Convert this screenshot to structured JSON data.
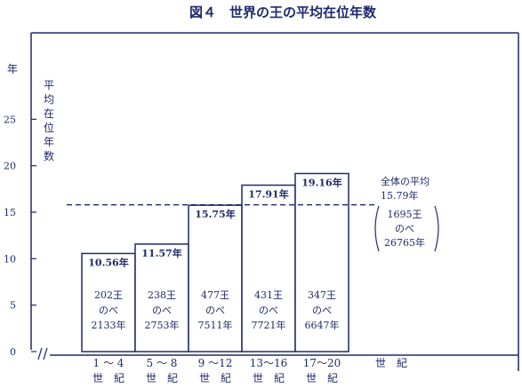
{
  "chart_data": {
    "type": "bar",
    "title": "図４　世界の王の平均在位年数",
    "y_unit": "年",
    "ylabel_chars": [
      "平",
      "均",
      "在",
      "位",
      "年",
      "数"
    ],
    "yticks": [
      0,
      5,
      10,
      15,
      20,
      25
    ],
    "ylim": [
      0,
      30
    ],
    "axis_break": true,
    "grid": false,
    "categories": [
      {
        "range": "1 ～ 4",
        "century": "世　紀"
      },
      {
        "range": "5 ～ 8",
        "century": "世　紀"
      },
      {
        "range": "9 ～12",
        "century": "世　紀"
      },
      {
        "range": "13～16",
        "century": "世　紀"
      },
      {
        "range": "17～20",
        "century": "世　紀"
      }
    ],
    "values": [
      10.56,
      11.57,
      15.75,
      17.91,
      19.16
    ],
    "value_labels": [
      "10.56年",
      "11.57年",
      "15.75年",
      "17.91年",
      "19.16年"
    ],
    "counts": [
      {
        "kings": "202王",
        "nobe": "のべ",
        "years": "2133年"
      },
      {
        "kings": "238王",
        "nobe": "のべ",
        "years": "2753年"
      },
      {
        "kings": "477王",
        "nobe": "のべ",
        "years": "7511年"
      },
      {
        "kings": "431王",
        "nobe": "のべ",
        "years": "7721年"
      },
      {
        "kings": "347王",
        "nobe": "のべ",
        "years": "6647年"
      }
    ],
    "xlabel": "世　紀",
    "average": {
      "value": 15.79,
      "label": "全体の平均",
      "value_label": "15.79年",
      "kings": "1695王",
      "nobe": "のべ",
      "years": "26765年"
    }
  }
}
